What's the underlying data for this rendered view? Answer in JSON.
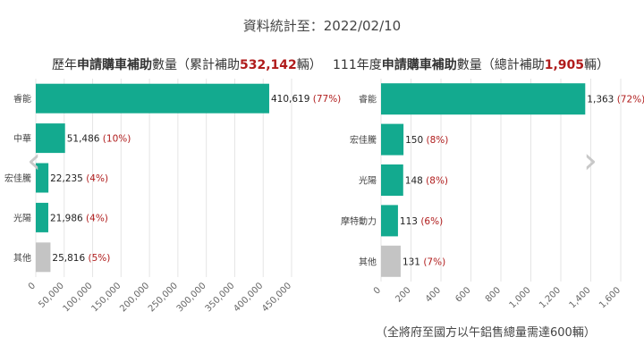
{
  "stats_date_label": "資料統計至：2022/02/10",
  "left_title": {
    "prefix": "歷年",
    "bold": "申請購車補助",
    "middle": "數量（累計補助",
    "total": "532,142",
    "suffix": "輛）"
  },
  "right_title": {
    "prefix": "111年度",
    "bold": "申請購車補助",
    "middle": "數量（總計補助",
    "total": "1,905",
    "suffix": "輛）"
  },
  "footnote": "（全將府至國方以午鋁售總量需達600輛）",
  "nav": {
    "prev_icon": "‹",
    "next_icon": "›"
  },
  "colors": {
    "bar": "#13aa8f",
    "other_bar": "#c4c4c4",
    "percent": "#b01c1c",
    "title_highlight": "#b01c1c"
  },
  "chart_data": [
    {
      "type": "bar",
      "orientation": "horizontal",
      "categories": [
        "睿能",
        "中華",
        "宏佳騰",
        "光陽",
        "其他"
      ],
      "category_labels": [
        "睿能",
        "中華",
        "宏佳騰",
        "光陽",
        "其他"
      ],
      "values": [
        410619,
        51486,
        22235,
        21986,
        25816
      ],
      "value_labels": [
        "410,619",
        "51,486",
        "22,235",
        "21,986",
        "25,816"
      ],
      "percent_labels": [
        "(77%)",
        "(10%)",
        "(4%)",
        "(4%)",
        "(5%)"
      ],
      "xlim": [
        0,
        450000
      ],
      "xticks": [
        0,
        50000,
        100000,
        150000,
        200000,
        250000,
        300000,
        350000,
        400000,
        450000
      ],
      "xtick_labels": [
        "0",
        "50,000",
        "100,000",
        "150,000",
        "200,000",
        "250,000",
        "300,000",
        "350,000",
        "400,000",
        "450,000"
      ]
    },
    {
      "type": "bar",
      "orientation": "horizontal",
      "categories": [
        "睿能",
        "宏佳騰",
        "光陽",
        "摩特動力",
        "其他"
      ],
      "category_labels": [
        "睿能",
        "宏佳騰",
        "光陽",
        "摩特動力",
        "其他"
      ],
      "values": [
        1363,
        150,
        148,
        113,
        131
      ],
      "value_labels": [
        "1,363",
        "150",
        "148",
        "113",
        "131"
      ],
      "percent_labels": [
        "(72%)",
        "(8%)",
        "(8%)",
        "(6%)",
        "(7%)"
      ],
      "xlim": [
        0,
        1600
      ],
      "xticks": [
        0,
        200,
        400,
        600,
        800,
        1000,
        1200,
        1400,
        1600
      ],
      "xtick_labels": [
        "0",
        "200",
        "400",
        "600",
        "800",
        "1,000",
        "1,200",
        "1,400",
        "1,600"
      ]
    }
  ]
}
